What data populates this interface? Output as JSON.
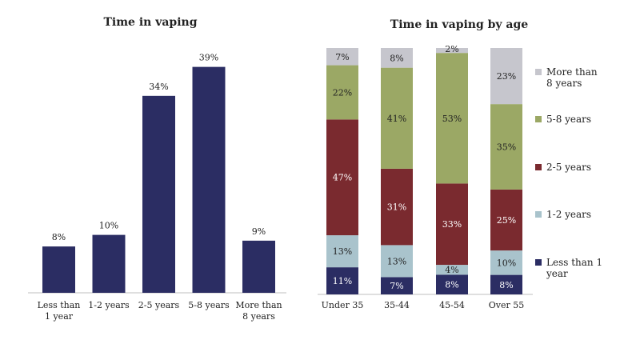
{
  "chart_data": [
    {
      "type": "bar",
      "title": "Time in vaping",
      "xlabel": "",
      "ylabel": "",
      "ylim": [
        0,
        40
      ],
      "grid": false,
      "categories": [
        "Less than\n1 year",
        "1-2 years",
        "2-5 years",
        "5-8 years",
        "More than\n8 years"
      ],
      "values": [
        8,
        10,
        34,
        39,
        9
      ],
      "value_labels": [
        "8%",
        "10%",
        "34%",
        "39%",
        "9%"
      ],
      "colors": {
        "bar": "#2b2d63"
      }
    },
    {
      "type": "bar",
      "stacked": true,
      "title": "Time in vaping by age",
      "xlabel": "",
      "ylabel": "",
      "ylim": [
        0,
        100
      ],
      "grid": false,
      "legend": "right",
      "categories": [
        "Under 35",
        "35-44",
        "45-54",
        "Over 55"
      ],
      "series": [
        {
          "name": "Less than 1 year",
          "color": "#2b2d63",
          "label_color": "#ffffff",
          "values": [
            11,
            7,
            8,
            8
          ],
          "labels": [
            "11%",
            "7%",
            "8%",
            "8%"
          ]
        },
        {
          "name": "1-2 years",
          "color": "#a9c3cc",
          "label_color": "#222222",
          "values": [
            13,
            13,
            4,
            10
          ],
          "labels": [
            "13%",
            "13%",
            "4%",
            "10%"
          ]
        },
        {
          "name": "2-5 years",
          "color": "#7a2a2f",
          "label_color": "#ffffff",
          "values": [
            47,
            31,
            33,
            25
          ],
          "labels": [
            "47%",
            "31%",
            "33%",
            "25%"
          ]
        },
        {
          "name": "5-8 years",
          "color": "#9ba865",
          "label_color": "#222222",
          "values": [
            22,
            41,
            53,
            35
          ],
          "labels": [
            "22%",
            "41%",
            "53%",
            "35%"
          ]
        },
        {
          "name": "More than 8 years",
          "color": "#c6c6cd",
          "label_color": "#222222",
          "values": [
            7,
            8,
            2,
            23
          ],
          "labels": [
            "7%",
            "8%",
            "2%",
            "23%"
          ]
        }
      ],
      "legend_entries": [
        [
          "More than",
          "8 years"
        ],
        [
          "5-8 years"
        ],
        [
          "2-5 years"
        ],
        [
          "1-2 years"
        ],
        [
          "Less than 1",
          "year"
        ]
      ]
    }
  ]
}
